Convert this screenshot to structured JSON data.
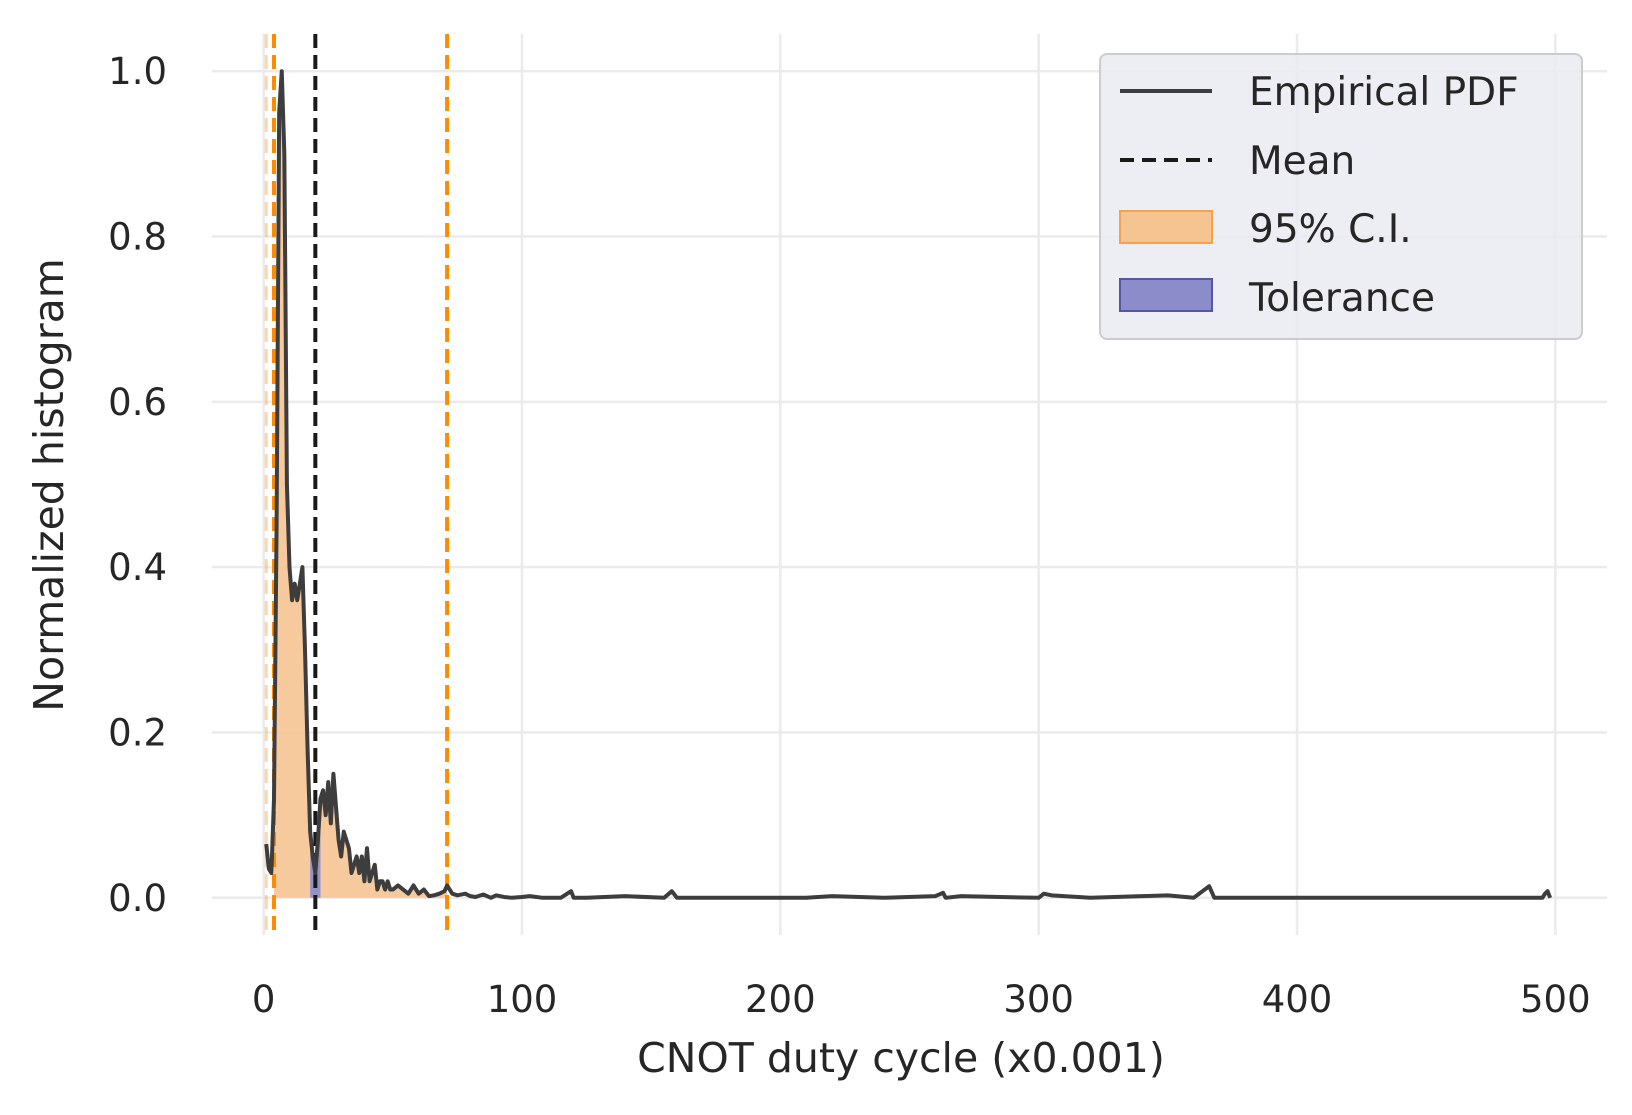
{
  "chart_data": {
    "type": "line",
    "title": "",
    "xlabel": "CNOT duty cycle (x0.001)",
    "ylabel": "Normalized histogram",
    "xlim": [
      -20,
      520
    ],
    "ylim": [
      -0.045,
      1.045
    ],
    "xticks": [
      0,
      100,
      200,
      300,
      400,
      500
    ],
    "xtick_labels": [
      "0",
      "100",
      "200",
      "300",
      "400",
      "500"
    ],
    "yticks": [
      0.0,
      0.2,
      0.4,
      0.6,
      0.8,
      1.0
    ],
    "ytick_labels": [
      "0.0",
      "0.2",
      "0.4",
      "0.6",
      "0.8",
      "1.0"
    ],
    "grid": true,
    "legend_position": "top-right",
    "colors": {
      "background": "#ffffff",
      "grid": "#ebebeb",
      "pdf_line": "#3d3d3d",
      "mean_line": "#1a1a1a",
      "ci_line": "#ff8c00",
      "ci_fill": "#f5c491",
      "tolerance_fill": "#8c8ccb"
    },
    "legend": [
      {
        "label": "Empirical PDF",
        "style": "solid-line",
        "icon": "line-icon"
      },
      {
        "label": "Mean",
        "style": "dashed-line",
        "icon": "dashed-line-icon"
      },
      {
        "label": "95% C.I.",
        "style": "orange-fill",
        "icon": "orange-patch-icon"
      },
      {
        "label": "Tolerance",
        "style": "purple-fill",
        "icon": "purple-patch-icon"
      }
    ],
    "mean": 20,
    "ci_lower": 4,
    "ci_upper": 71,
    "tolerance_range": [
      18,
      22
    ],
    "extra_vlines": [
      1
    ],
    "series": [
      {
        "x": [
          1,
          2,
          3,
          4,
          5,
          6,
          7,
          8,
          9,
          10,
          11,
          12,
          13,
          14,
          15,
          16,
          17,
          18,
          19,
          20,
          21,
          22,
          23,
          24,
          25,
          26,
          27,
          28,
          29,
          30,
          31,
          32,
          33,
          34,
          35,
          36,
          37,
          38,
          39,
          40,
          41,
          42,
          43,
          44,
          45,
          46,
          47,
          48,
          49,
          50,
          52,
          54,
          56,
          58,
          60,
          62,
          64,
          66,
          68,
          70,
          71,
          73,
          75,
          78,
          80,
          82,
          85,
          88,
          90,
          93,
          96,
          100,
          103,
          108,
          115,
          119,
          120,
          125,
          140,
          155,
          158,
          160,
          180,
          210,
          220,
          240,
          260,
          263,
          264,
          270,
          300,
          302,
          305,
          320,
          340,
          350,
          360,
          366,
          368,
          380,
          400,
          450,
          495,
          496,
          497,
          498
        ],
        "y": [
          0.065,
          0.035,
          0.03,
          0.12,
          0.45,
          0.95,
          1.0,
          0.9,
          0.5,
          0.4,
          0.36,
          0.38,
          0.36,
          0.38,
          0.4,
          0.3,
          0.18,
          0.08,
          0.05,
          0.03,
          0.07,
          0.12,
          0.13,
          0.1,
          0.14,
          0.09,
          0.15,
          0.11,
          0.07,
          0.05,
          0.08,
          0.07,
          0.06,
          0.03,
          0.04,
          0.05,
          0.03,
          0.05,
          0.02,
          0.06,
          0.02,
          0.03,
          0.04,
          0.01,
          0.02,
          0.02,
          0.01,
          0.02,
          0.01,
          0.01,
          0.015,
          0.01,
          0.005,
          0.015,
          0.005,
          0.01,
          0.002,
          0.003,
          0.005,
          0.008,
          0.015,
          0.005,
          0.003,
          0.005,
          0.002,
          0.001,
          0.004,
          0.0,
          0.003,
          0.001,
          0.0,
          0.001,
          0.002,
          0.0,
          0.0,
          0.008,
          0.0,
          0.0,
          0.002,
          0.0,
          0.008,
          0.0,
          0.0,
          0.0,
          0.002,
          0.0,
          0.002,
          0.006,
          0.0,
          0.002,
          0.0,
          0.005,
          0.003,
          0.0,
          0.002,
          0.003,
          0.0,
          0.014,
          0.0,
          0.0,
          0.0,
          0.0,
          0.0,
          0.005,
          0.008,
          0.0
        ]
      }
    ]
  }
}
